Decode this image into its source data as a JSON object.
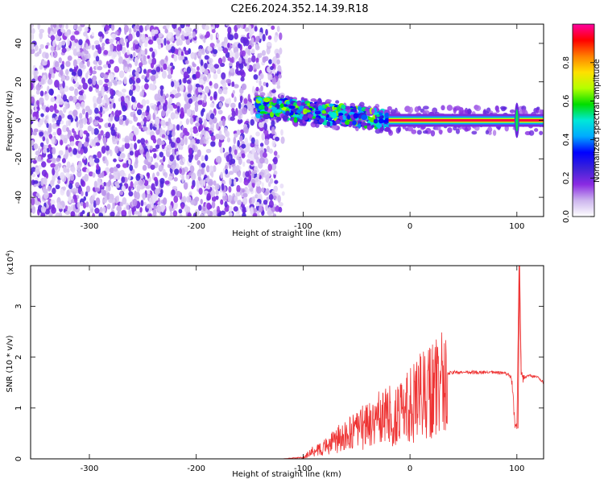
{
  "title": "C2E6.2024.352.14.39.R18",
  "chart_data": [
    {
      "type": "heatmap",
      "xlabel": "Height of straight line (km)",
      "ylabel": "Frequency (Hz)",
      "xlim": [
        -355,
        125
      ],
      "ylim": [
        -50,
        50
      ],
      "xticks": [
        -300,
        -200,
        -100,
        0,
        100
      ],
      "yticks": [
        -40,
        -20,
        0,
        20,
        40
      ],
      "colorbar": {
        "label": "Normalized spectral amplitude",
        "range": [
          0.0,
          1.0
        ],
        "ticks": [
          0.0,
          0.2,
          0.4,
          0.6,
          0.8
        ],
        "colors": [
          "#ffffff",
          "#cdb6ee",
          "#8a2be2",
          "#3c22d8",
          "#0000ff",
          "#00aaff",
          "#00e8d8",
          "#00dd00",
          "#b4ff00",
          "#ffe000",
          "#ff8000",
          "#ff0000",
          "#ff00a0"
        ]
      },
      "regions": [
        {
          "description_x_from": -355,
          "x_to": -125,
          "freq_span": [
            -50,
            50
          ],
          "typical_amplitude": 0.05
        },
        {
          "x_from": -145,
          "x_to": -20,
          "center_freq": 7,
          "typical_amplitude": 0.45
        },
        {
          "x_from": -20,
          "x_to": 125,
          "center_freq": 0,
          "typical_amplitude": 0.95
        }
      ]
    },
    {
      "type": "line",
      "xlabel": "Height of straight line (km)",
      "ylabel": "SNR (10 * v/v)",
      "y_multiplier": "(x10^4)",
      "xlim": [
        -355,
        125
      ],
      "ylim": [
        0,
        3.8
      ],
      "xticks": [
        -300,
        -200,
        -100,
        0,
        100
      ],
      "yticks": [
        0,
        1,
        2,
        3
      ],
      "color": "#ee3333",
      "series": [
        {
          "x": [
            -355,
            -120,
            -100,
            -90,
            -80,
            -70,
            -60,
            -50,
            -40,
            -30,
            -20,
            -10,
            0,
            10,
            20,
            30,
            40,
            60,
            80,
            90,
            95,
            98,
            100,
            102,
            104,
            106,
            110,
            120,
            125
          ],
          "y": [
            0.0,
            0.0,
            0.03,
            0.18,
            0.25,
            0.4,
            0.5,
            0.6,
            0.75,
            0.85,
            0.95,
            0.95,
            1.15,
            1.35,
            1.5,
            1.65,
            1.7,
            1.7,
            1.7,
            1.68,
            1.6,
            0.7,
            0.6,
            3.8,
            1.65,
            1.55,
            1.65,
            1.6,
            1.5
          ]
        }
      ]
    }
  ]
}
